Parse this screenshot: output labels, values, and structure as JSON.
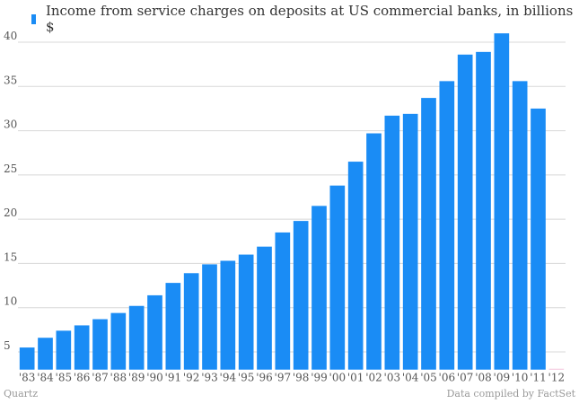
{
  "chart_data": {
    "type": "bar",
    "legend_placement": "top-left",
    "grid": true,
    "series": [
      {
        "name": "Income from service charges on deposits at US commercial banks, in billions $",
        "values": [
          5.5,
          6.6,
          7.4,
          8.0,
          8.7,
          9.4,
          10.2,
          11.4,
          12.8,
          13.9,
          14.9,
          15.3,
          16.0,
          16.9,
          18.5,
          19.8,
          21.5,
          23.8,
          26.5,
          29.7,
          31.7,
          31.9,
          33.7,
          35.6,
          38.6,
          38.9,
          41.0,
          35.6,
          32.5,
          null
        ]
      }
    ],
    "categories": [
      "'83",
      "'84",
      "'85",
      "'86",
      "'87",
      "'88",
      "'89",
      "'90",
      "'91",
      "'92",
      "'93",
      "'94",
      "'95",
      "'96",
      "'97",
      "'98",
      "'99",
      "'00",
      "'01",
      "'02",
      "'03",
      "'04",
      "'05",
      "'06",
      "'07",
      "'08",
      "'09",
      "'10",
      "'11",
      "'12"
    ],
    "yticks": [
      5,
      10,
      15,
      20,
      25,
      30,
      35,
      40
    ],
    "ylim": [
      3,
      42.5
    ],
    "colors": {
      "bar": "#1a8cf5",
      "grid": "#d8d8d8",
      "tick_text": "#555555",
      "x_tick_text": "#555555",
      "baseline": "#f3c4dc"
    }
  },
  "footer": {
    "source_left": "Quartz",
    "source_right": "Data compiled by FactSet"
  }
}
